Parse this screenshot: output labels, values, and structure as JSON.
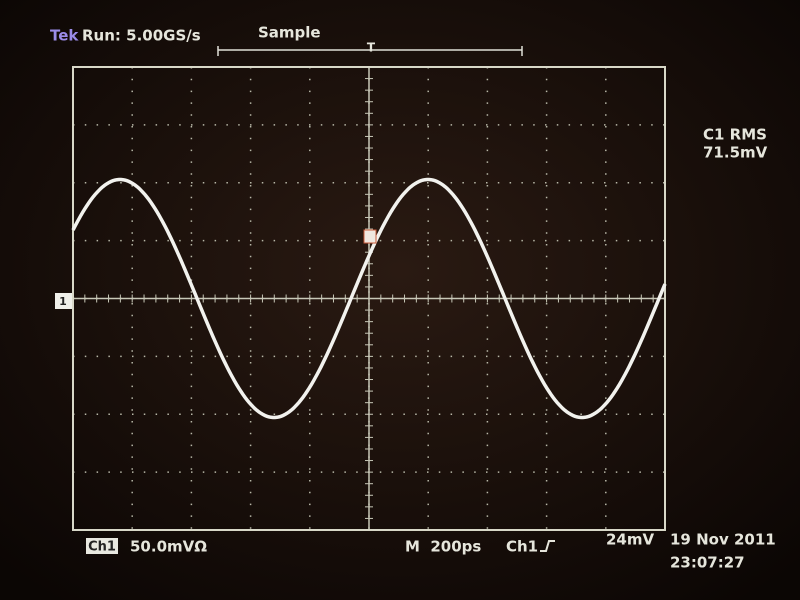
{
  "header": {
    "brand": "Tek",
    "run": "Run: 5.00GS/s",
    "mode": "Sample"
  },
  "measurement": {
    "label": "C1 RMS",
    "value": "71.5mV"
  },
  "footer": {
    "channel": "Ch1",
    "scale": "50.0mVΩ",
    "timebase": "M  200ps",
    "trigger_source": "Ch1",
    "trigger_level": "24mV",
    "date": "19 Nov 2011",
    "time": "23:07:27"
  },
  "markers": {
    "channel": "1",
    "trigger": "T"
  }
}
